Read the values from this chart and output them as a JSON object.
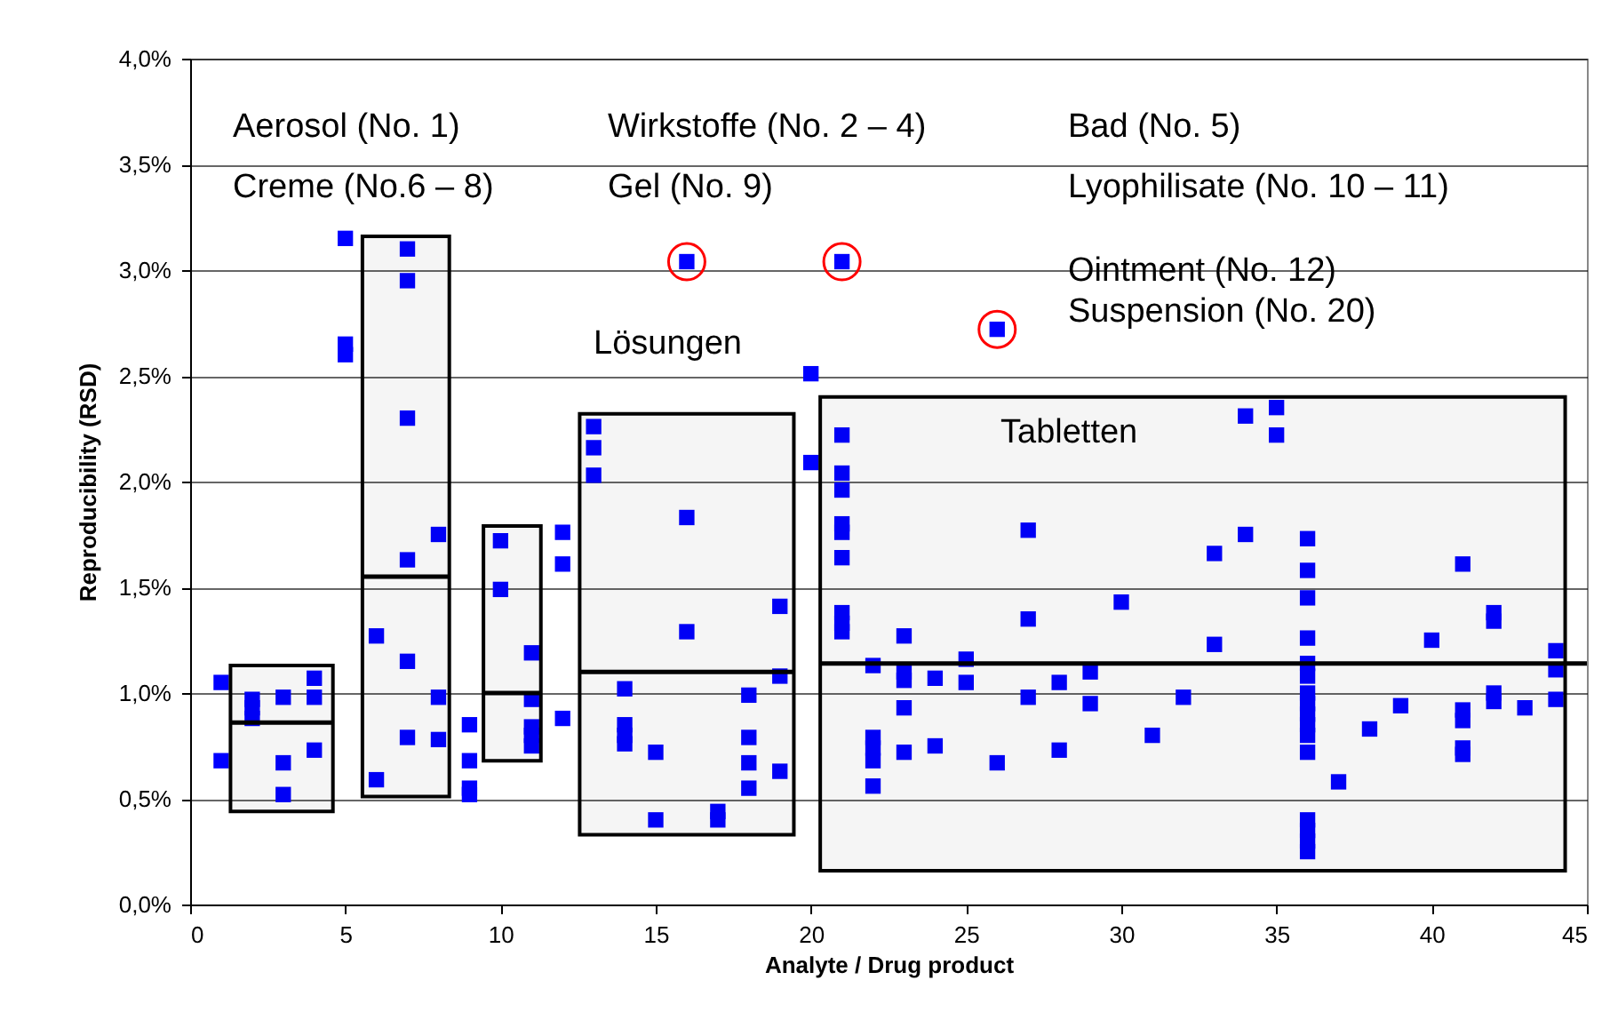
{
  "chart_data": {
    "type": "scatter",
    "xlabel": "Analyte / Drug product",
    "ylabel": "Reproducibility (RSD)",
    "xlim": [
      0,
      45
    ],
    "xticks": [
      0,
      5,
      10,
      15,
      20,
      25,
      30,
      35,
      40,
      45
    ],
    "ylim": [
      0,
      4
    ],
    "yticks": [
      {
        "value": 0,
        "label": "0,0%"
      },
      {
        "value": 0.5,
        "label": "0,5%"
      },
      {
        "value": 1,
        "label": "1,0%"
      },
      {
        "value": 1.5,
        "label": "1,5%"
      },
      {
        "value": 2,
        "label": "2,0%"
      },
      {
        "value": 2.5,
        "label": "2,5%"
      },
      {
        "value": 3,
        "label": "3,0%"
      },
      {
        "value": 3.5,
        "label": "3,5%"
      },
      {
        "value": 4,
        "label": "4,0%"
      }
    ],
    "grid": "y",
    "series": [
      {
        "color": "#0000ff",
        "marker": "square",
        "x": [
          1,
          1,
          2,
          2,
          2,
          3,
          3,
          3,
          4,
          4,
          4,
          5,
          5,
          5,
          6,
          6,
          7,
          7,
          7,
          7,
          7,
          7,
          8,
          8,
          8,
          9,
          9,
          9,
          9,
          10,
          10,
          11,
          11,
          11,
          11,
          11,
          12,
          12,
          12,
          13,
          13,
          13,
          14,
          14,
          14,
          14,
          15,
          15,
          16,
          16,
          16,
          17,
          17,
          18,
          18,
          18,
          18,
          19,
          19,
          19,
          20,
          20,
          21,
          21,
          21,
          21,
          21,
          21,
          21,
          21,
          21,
          21,
          22,
          22,
          22,
          22,
          22,
          23,
          23,
          23,
          23,
          23,
          24,
          24,
          25,
          25,
          26,
          26,
          27,
          27,
          27,
          28,
          28,
          29,
          29,
          30,
          31,
          32,
          33,
          33,
          34,
          34,
          35,
          35,
          36,
          36,
          36,
          36,
          36,
          36,
          36,
          36,
          36,
          36,
          36,
          36,
          36,
          36,
          36,
          36,
          37,
          38,
          39,
          40,
          41,
          41,
          41,
          41,
          41,
          42,
          42,
          42,
          42,
          43,
          44,
          44,
          44
        ],
        "values": [
          1.05,
          0.68,
          0.97,
          0.93,
          0.88,
          0.98,
          0.67,
          0.52,
          1.07,
          0.98,
          0.73,
          3.15,
          2.65,
          2.6,
          1.27,
          0.59,
          3.1,
          2.95,
          2.3,
          1.63,
          1.15,
          0.79,
          1.75,
          0.98,
          0.78,
          0.85,
          0.68,
          0.55,
          0.52,
          1.72,
          1.49,
          1.19,
          0.97,
          0.84,
          0.8,
          0.75,
          1.76,
          1.61,
          0.88,
          2.26,
          2.16,
          2.03,
          1.02,
          0.85,
          0.8,
          0.76,
          0.72,
          0.4,
          3.04,
          1.83,
          1.29,
          0.44,
          0.4,
          0.99,
          0.79,
          0.67,
          0.55,
          1.41,
          1.08,
          0.63,
          2.51,
          2.09,
          3.04,
          2.22,
          2.04,
          1.96,
          1.8,
          1.76,
          1.64,
          1.38,
          1.33,
          1.29,
          1.13,
          0.79,
          0.74,
          0.68,
          0.56,
          1.27,
          1.1,
          1.06,
          0.93,
          0.72,
          1.07,
          0.75,
          1.16,
          1.05,
          2.72,
          0.67,
          1.77,
          1.35,
          0.98,
          1.05,
          0.73,
          1.1,
          0.95,
          1.43,
          0.8,
          0.98,
          1.66,
          1.23,
          2.31,
          1.75,
          2.35,
          2.22,
          1.73,
          1.58,
          1.45,
          1.26,
          1.14,
          1.08,
          1,
          0.95,
          0.9,
          0.85,
          0.8,
          0.72,
          0.4,
          0.35,
          0.3,
          0.25,
          0.58,
          0.83,
          0.94,
          1.25,
          1.61,
          0.92,
          0.87,
          0.74,
          0.71,
          1.38,
          1.34,
          1,
          0.96,
          0.93,
          1.2,
          1.11,
          0.97
        ]
      },
      {
        "color": "#ff0000",
        "marker": "circle",
        "x": [
          16,
          21,
          26
        ],
        "values": [
          3.04,
          3.04,
          2.72
        ]
      },
      {
        "type": "line",
        "color": "#000000",
        "x": [
          1.3,
          4.6
        ],
        "values": [
          0.86,
          0.86
        ],
        "lower": [
          0.44,
          0.44
        ],
        "upper": [
          1.13,
          1.13
        ]
      },
      {
        "type": "line",
        "color": "#000000",
        "x": [
          5.55,
          8.35
        ],
        "values": [
          1.55,
          1.55
        ],
        "lower": [
          0.51,
          0.51
        ],
        "upper": [
          3.16,
          3.16
        ]
      },
      {
        "type": "line",
        "color": "#000000",
        "x": [
          9.45,
          11.3
        ],
        "values": [
          1,
          1
        ],
        "lower": [
          0.68,
          0.68
        ],
        "upper": [
          1.79,
          1.79
        ]
      },
      {
        "type": "line",
        "color": "#000000",
        "x": [
          12.55,
          19.45
        ],
        "values": [
          1.1,
          1.1
        ],
        "lower": [
          0.33,
          0.33
        ],
        "upper": [
          2.32,
          2.32
        ]
      },
      {
        "type": "line",
        "color": "#000000",
        "x": [
          20.3,
          44.3,
          45
        ],
        "values": [
          1.14,
          1.14,
          1.14
        ],
        "lower": [
          0.16,
          0.16,
          null
        ],
        "upper": [
          2.4,
          2.4,
          null
        ]
      }
    ],
    "annotations": [
      "Aerosol (No. 1)",
      "Wirkstoffe (No. 2 – 4)",
      "Bad (No. 5)",
      "Creme (No.6 – 8)",
      "Gel (No. 9)",
      "Lyophilisate (No. 10 – 11)",
      "Ointment (No. 12)",
      "Suspension (No. 20)",
      "Lösungen",
      "Tabletten"
    ]
  }
}
